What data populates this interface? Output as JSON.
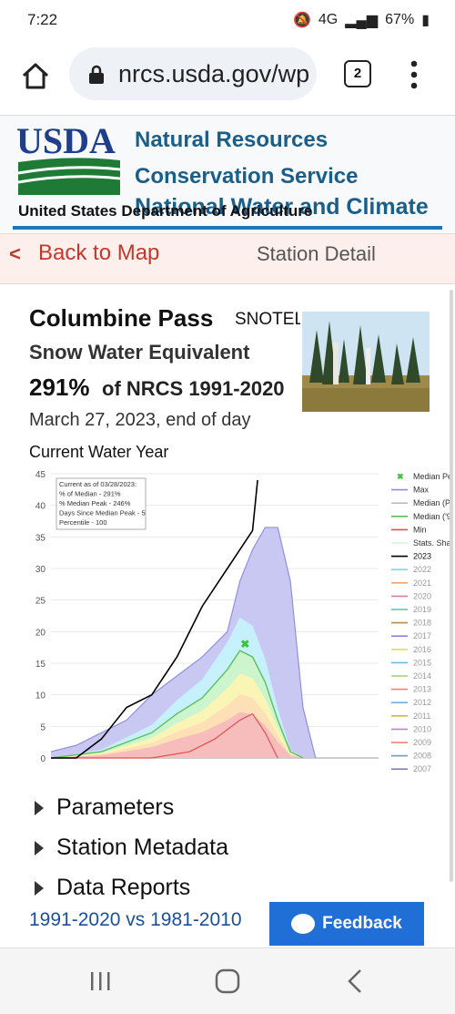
{
  "status": {
    "time": "7:22",
    "network": "4G",
    "battery": "67%"
  },
  "browser": {
    "url": "nrcs.usda.gov/wp",
    "tab_count": "2"
  },
  "header": {
    "logo_text": "USDA",
    "dept": "United States Department of Agriculture",
    "agency_line1": "Natural Resources",
    "agency_line2": "Conservation Service",
    "center": "National Water and Climate"
  },
  "nav": {
    "back_label": "Back to Map",
    "back_arrow": "<",
    "page_label": "Station Detail"
  },
  "station": {
    "name": "Columbine Pass",
    "network": "SNOTEL",
    "metric": "Snow Water Equivalent",
    "percent": "291%",
    "percent_of": "of NRCS 1991-2020",
    "date": "March 27, 2023, end of day",
    "water_year": "Current Water Year"
  },
  "chart_data": {
    "type": "line",
    "ylim": [
      0,
      45
    ],
    "yticks": [
      "0",
      "5",
      "10",
      "15",
      "20",
      "25",
      "30",
      "35",
      "40",
      "45"
    ],
    "info_box": [
      "Current as of 03/28/2023:",
      "% of Median - 291%",
      "% Median Peak - 246%",
      "Days Since Median Peak - 5",
      "Percentile - 100"
    ],
    "legend": [
      "Median Pe",
      "Max",
      "Median (P",
      "Median ('9",
      "Min",
      "Stats. Sha",
      "2023",
      "2022",
      "2021",
      "2020",
      "2019",
      "2018",
      "2017",
      "2016",
      "2015",
      "2014",
      "2013",
      "2012",
      "2011",
      "2010",
      "2009",
      "2008",
      "2007"
    ],
    "colors": {
      "max": "#8f8fe0",
      "median": "#5cc15c",
      "min": "#e05050",
      "current": "#000000",
      "marker": "#3cc33c"
    },
    "series": [
      {
        "name": "Max",
        "x": [
          0,
          10,
          20,
          30,
          40,
          50,
          60,
          70,
          75,
          80,
          85,
          90,
          95,
          100,
          105
        ],
        "y": [
          1,
          2,
          4,
          6,
          10,
          13,
          16,
          20,
          28,
          33,
          36.5,
          36.5,
          28,
          8,
          0
        ]
      },
      {
        "name": "Median ('91-'20)",
        "x": [
          0,
          20,
          40,
          50,
          60,
          70,
          75,
          80,
          85,
          90,
          95,
          100
        ],
        "y": [
          0,
          1,
          4,
          7,
          9.5,
          14,
          17,
          16,
          12,
          6,
          1,
          0
        ]
      },
      {
        "name": "Min",
        "x": [
          0,
          40,
          55,
          65,
          75,
          80,
          85,
          90
        ],
        "y": [
          0,
          0,
          1,
          3,
          6,
          7,
          4,
          0
        ]
      },
      {
        "name": "2023",
        "x": [
          0,
          10,
          20,
          30,
          40,
          50,
          55,
          60,
          65,
          70,
          75,
          80,
          82
        ],
        "y": [
          0,
          0,
          3,
          8,
          10,
          16,
          20,
          24,
          27,
          30,
          33,
          36,
          44
        ]
      }
    ],
    "marker": {
      "name": "Median Peak",
      "x": 77,
      "y": 18
    }
  },
  "expanders": [
    "Parameters",
    "Station Metadata",
    "Data Reports"
  ],
  "compare_link": "1991-2020 vs 1981-2010",
  "feedback_label": "Feedback"
}
